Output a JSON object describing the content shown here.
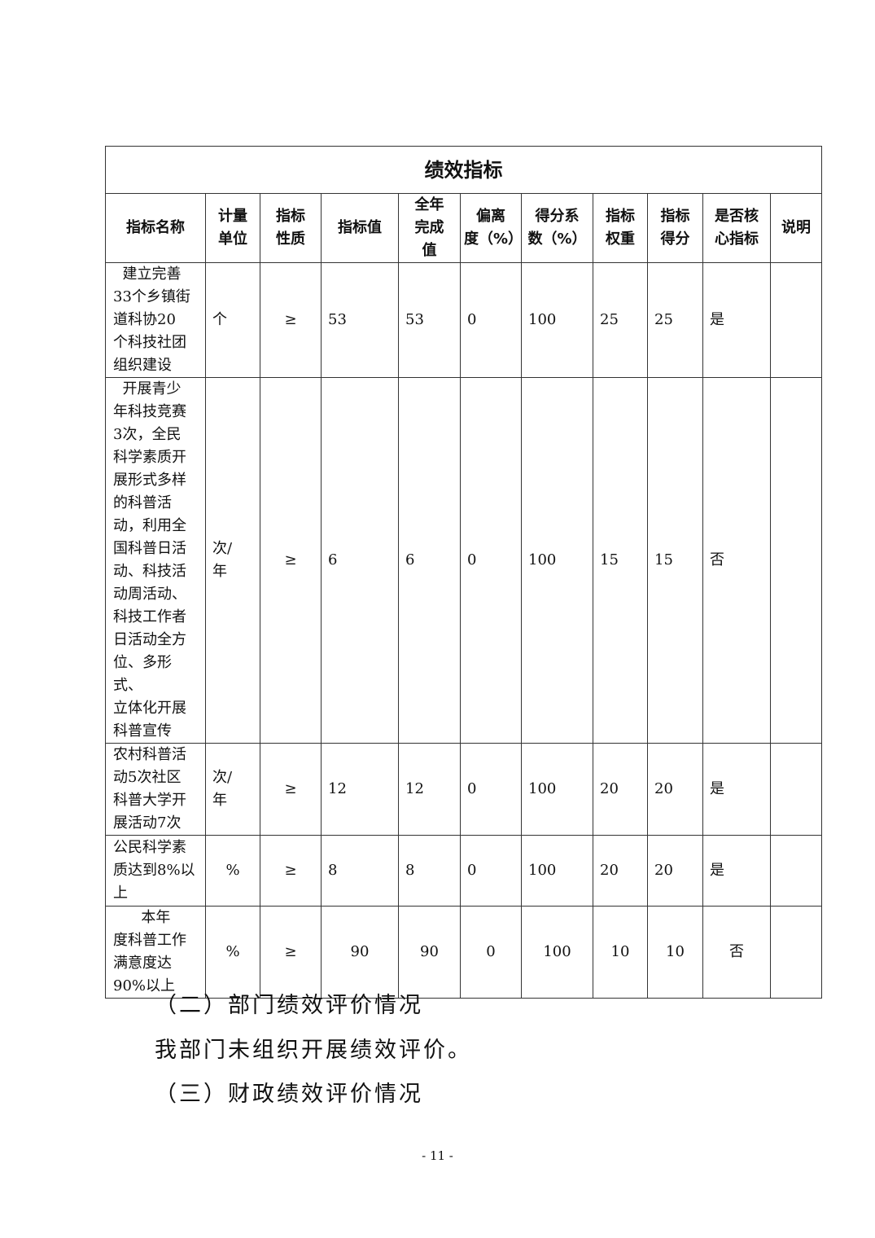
{
  "table": {
    "title": "绩效指标",
    "headers": [
      "指标名称",
      "计量\n单位",
      "指标\n性质",
      "指标值",
      "全年\n完成\n值",
      "偏离\n度（%）",
      "得分系\n数（%）",
      "指标\n权重",
      "指标\n得分",
      "是否核\n心指标",
      "说明"
    ],
    "rows": [
      {
        "name": "  建立完善\n33个乡镇街\n道科协20\n个科技社团\n组织建设",
        "unit": "个",
        "nature": "≥",
        "target": "53",
        "actual": "53",
        "deviation": "0",
        "coef": "100",
        "weight": "25",
        "score": "25",
        "core": "是",
        "note": ""
      },
      {
        "name": "  开展青少\n年科技竞赛\n3次，全民\n科学素质开\n展形式多样\n的科普活\n动，利用全\n国科普日活\n动、科技活\n动周活动、\n科技工作者\n日活动全方\n位、多形式、\n立体化开展\n科普宣传",
        "unit": "次/\n年",
        "nature": "≥",
        "target": "6",
        "actual": "6",
        "deviation": "0",
        "coef": "100",
        "weight": "15",
        "score": "15",
        "core": "否",
        "note": ""
      },
      {
        "name": "农村科普活\n动5次社区\n科普大学开\n展活动7次",
        "unit": "次/\n年",
        "nature": "≥",
        "target": "12",
        "actual": "12",
        "deviation": "0",
        "coef": "100",
        "weight": "20",
        "score": "20",
        "core": "是",
        "note": ""
      },
      {
        "name": "公民科学素\n质达到8%以\n上",
        "unit": "%",
        "nature": "≥",
        "target": "8",
        "actual": "8",
        "deviation": "0",
        "coef": "100",
        "weight": "20",
        "score": "20",
        "core": "是",
        "note": ""
      },
      {
        "name": "      本年\n度科普工作\n满意度达\n90%以上",
        "unit": "%",
        "nature": "≥",
        "target": "90",
        "actual": "90",
        "deviation": "0",
        "coef": "100",
        "weight": "10",
        "score": "10",
        "core": "否",
        "note": ""
      }
    ]
  },
  "sections": {
    "heading2": "（二）部门绩效评价情况",
    "body2": "我部门未组织开展绩效评价。",
    "heading3": "（三）财政绩效评价情况"
  },
  "page_number": "- 11 -"
}
